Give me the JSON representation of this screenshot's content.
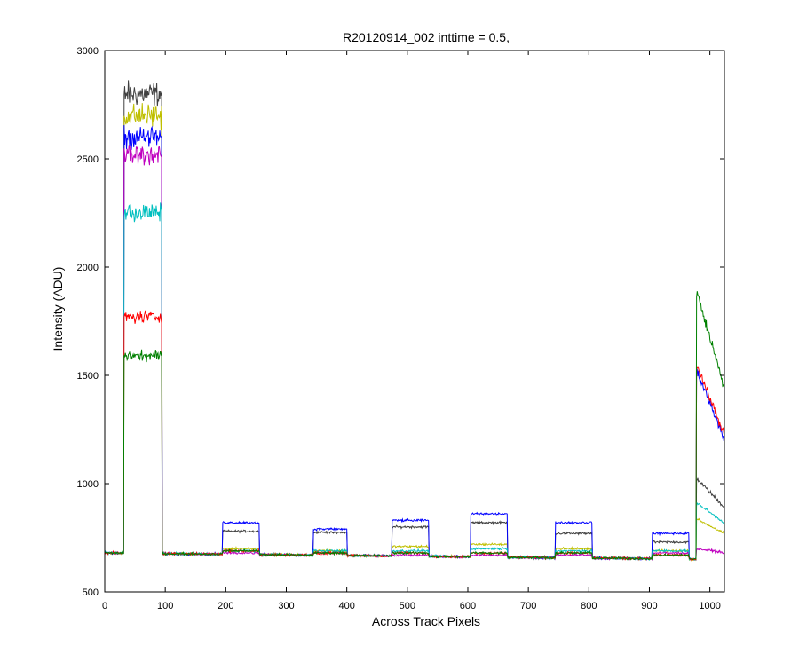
{
  "chart_data": {
    "type": "line",
    "title": "R20120914_002 inttime = 0.5,",
    "xlabel": "Across Track Pixels",
    "ylabel": "Intensity (ADU)",
    "xlim": [
      0,
      1024
    ],
    "ylim": [
      500,
      3000
    ],
    "xticks": [
      0,
      100,
      200,
      300,
      400,
      500,
      600,
      700,
      800,
      900,
      1000
    ],
    "yticks": [
      500,
      1000,
      1500,
      2000,
      2500,
      3000
    ],
    "grid": false,
    "legend": "none",
    "baseline": 680,
    "baseline_end": 650,
    "segments": [
      {
        "start": 32,
        "end": 94
      },
      {
        "start": 195,
        "end": 255
      },
      {
        "start": 345,
        "end": 400
      },
      {
        "start": 475,
        "end": 535
      },
      {
        "start": 605,
        "end": 665
      },
      {
        "start": 745,
        "end": 805
      },
      {
        "start": 905,
        "end": 965
      },
      {
        "start": 978,
        "end": 1024
      }
    ],
    "series": [
      {
        "color": "#404040",
        "levels": [
          2800,
          780,
          775,
          800,
          820,
          770,
          730,
          950
        ]
      },
      {
        "color": "#bfbf00",
        "levels": [
          2700,
          700,
          690,
          710,
          720,
          700,
          690,
          800
        ]
      },
      {
        "color": "#0000ff",
        "levels": [
          2600,
          820,
          790,
          830,
          860,
          820,
          770,
          1350
        ]
      },
      {
        "color": "#bf00bf",
        "levels": [
          2520,
          680,
          680,
          670,
          670,
          670,
          680,
          690
        ]
      },
      {
        "color": "#00bfbf",
        "levels": [
          2250,
          690,
          690,
          690,
          700,
          690,
          690,
          860
        ]
      },
      {
        "color": "#ff0000",
        "levels": [
          1770,
          690,
          680,
          680,
          680,
          680,
          670,
          1370
        ]
      },
      {
        "color": "#008000",
        "levels": [
          1590,
          690,
          680,
          680,
          680,
          680,
          670,
          1640
        ]
      }
    ]
  }
}
